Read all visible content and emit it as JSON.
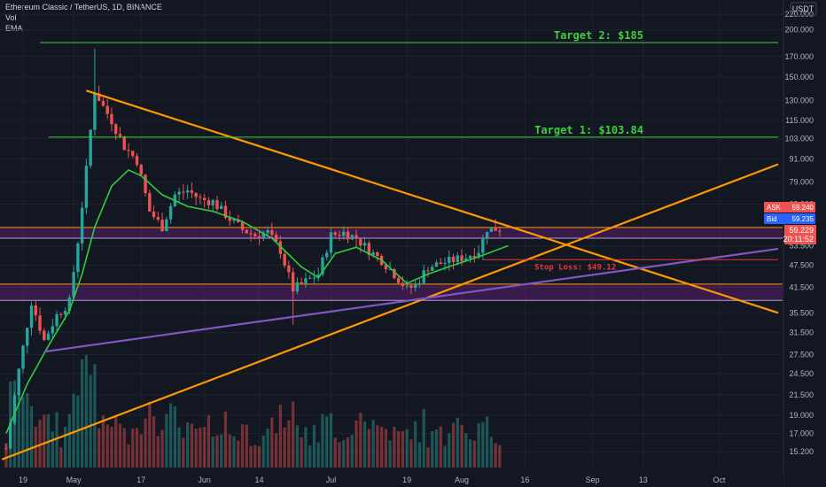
{
  "legend": {
    "title": "Ethereum Classic / TetherUS, 1D, BINANCE",
    "vol": "Vol",
    "ema": "EMA"
  },
  "currency": "USDT",
  "quote": {
    "ask_label": "ASK",
    "ask": "59.240",
    "bid_label": "Bid",
    "bid": "59.235",
    "last": "59.229",
    "countdown": "20:11:52"
  },
  "colors": {
    "background": "#131722",
    "up": "#26a69a",
    "down": "#ef5350",
    "ema": "#2ecc40",
    "trendline": "#ff9800",
    "support": "#7e57c2",
    "target": "#3bd23b",
    "stop": "#e53935"
  },
  "chart_data": {
    "type": "candlestick",
    "title": "Ethereum Classic / TetherUS, 1D, BINANCE",
    "y_scale": "log",
    "ylim": [
      13.8,
      240
    ],
    "y_ticks": [
      "15.200",
      "17.000",
      "19.000",
      "21.500",
      "24.500",
      "27.500",
      "31.500",
      "35.500",
      "41.500",
      "47.500",
      "53.500",
      "59.229",
      "69.000",
      "79.000",
      "91.000",
      "103.000",
      "115.000",
      "130.000",
      "150.000",
      "170.000",
      "200.000",
      "220.000"
    ],
    "x_ticks": [
      {
        "label": "19",
        "date": "2021-04-19"
      },
      {
        "label": "May",
        "date": "2021-05-01"
      },
      {
        "label": "17",
        "date": "2021-05-17"
      },
      {
        "label": "Jun",
        "date": "2021-06-01"
      },
      {
        "label": "14",
        "date": "2021-06-14"
      },
      {
        "label": "Jul",
        "date": "2021-07-01"
      },
      {
        "label": "19",
        "date": "2021-07-19"
      },
      {
        "label": "Aug",
        "date": "2021-08-01"
      },
      {
        "label": "16",
        "date": "2021-08-16"
      },
      {
        "label": "Sep",
        "date": "2021-09-01"
      },
      {
        "label": "13",
        "date": "2021-09-13"
      },
      {
        "label": "Oct",
        "date": "2021-10-01"
      }
    ],
    "ohlc_waypoints": [
      {
        "date": "2021-04-15",
        "close": 15.5
      },
      {
        "date": "2021-04-18",
        "close": 25
      },
      {
        "date": "2021-04-21",
        "close": 38
      },
      {
        "date": "2021-04-24",
        "close": 30
      },
      {
        "date": "2021-04-27",
        "close": 35
      },
      {
        "date": "2021-04-30",
        "close": 38
      },
      {
        "date": "2021-05-02",
        "close": 55
      },
      {
        "date": "2021-05-04",
        "close": 85
      },
      {
        "date": "2021-05-06",
        "close": 138
      },
      {
        "date": "2021-05-08",
        "close": 125
      },
      {
        "date": "2021-05-10",
        "close": 115
      },
      {
        "date": "2021-05-13",
        "close": 98
      },
      {
        "date": "2021-05-16",
        "close": 90
      },
      {
        "date": "2021-05-19",
        "close": 66
      },
      {
        "date": "2021-05-22",
        "close": 60
      },
      {
        "date": "2021-05-25",
        "close": 73
      },
      {
        "date": "2021-05-28",
        "close": 75
      },
      {
        "date": "2021-05-31",
        "close": 71
      },
      {
        "date": "2021-06-03",
        "close": 70
      },
      {
        "date": "2021-06-07",
        "close": 63
      },
      {
        "date": "2021-06-10",
        "close": 59
      },
      {
        "date": "2021-06-13",
        "close": 57
      },
      {
        "date": "2021-06-16",
        "close": 58
      },
      {
        "date": "2021-06-19",
        "close": 52
      },
      {
        "date": "2021-06-22",
        "close": 41
      },
      {
        "date": "2021-06-25",
        "close": 43
      },
      {
        "date": "2021-06-28",
        "close": 45
      },
      {
        "date": "2021-07-01",
        "close": 57
      },
      {
        "date": "2021-07-04",
        "close": 58
      },
      {
        "date": "2021-07-07",
        "close": 56
      },
      {
        "date": "2021-07-10",
        "close": 52
      },
      {
        "date": "2021-07-13",
        "close": 49
      },
      {
        "date": "2021-07-16",
        "close": 45
      },
      {
        "date": "2021-07-19",
        "close": 41
      },
      {
        "date": "2021-07-21",
        "close": 42
      },
      {
        "date": "2021-07-24",
        "close": 47
      },
      {
        "date": "2021-07-27",
        "close": 48
      },
      {
        "date": "2021-07-30",
        "close": 49
      },
      {
        "date": "2021-08-02",
        "close": 50
      },
      {
        "date": "2021-08-05",
        "close": 52
      },
      {
        "date": "2021-08-07",
        "close": 59.5
      },
      {
        "date": "2021-08-10",
        "close": 59.229
      }
    ],
    "ema_waypoints": [
      {
        "date": "2021-04-15",
        "value": 17
      },
      {
        "date": "2021-04-20",
        "value": 23
      },
      {
        "date": "2021-04-25",
        "value": 29
      },
      {
        "date": "2021-04-30",
        "value": 36
      },
      {
        "date": "2021-05-03",
        "value": 45
      },
      {
        "date": "2021-05-06",
        "value": 60
      },
      {
        "date": "2021-05-10",
        "value": 77
      },
      {
        "date": "2021-05-14",
        "value": 85
      },
      {
        "date": "2021-05-17",
        "value": 82
      },
      {
        "date": "2021-05-22",
        "value": 73
      },
      {
        "date": "2021-05-28",
        "value": 68
      },
      {
        "date": "2021-06-03",
        "value": 66
      },
      {
        "date": "2021-06-10",
        "value": 62
      },
      {
        "date": "2021-06-17",
        "value": 56
      },
      {
        "date": "2021-06-24",
        "value": 47
      },
      {
        "date": "2021-06-28",
        "value": 44
      },
      {
        "date": "2021-07-02",
        "value": 51
      },
      {
        "date": "2021-07-07",
        "value": 53
      },
      {
        "date": "2021-07-13",
        "value": 49
      },
      {
        "date": "2021-07-19",
        "value": 42.5
      },
      {
        "date": "2021-07-24",
        "value": 45
      },
      {
        "date": "2021-07-30",
        "value": 47.5
      },
      {
        "date": "2021-08-05",
        "value": 50
      },
      {
        "date": "2021-08-12",
        "value": 53.5
      }
    ],
    "horizontal_levels": [
      {
        "label": "Target 2: $185",
        "value": 185,
        "from": "2021-04-23",
        "to": "2021-10-15"
      },
      {
        "label": "Target 1: $103.84",
        "value": 103.84,
        "from": "2021-04-25",
        "to": "2021-10-15"
      },
      {
        "label": "Stop Loss: $49.12",
        "value": 49.12,
        "from": "2021-08-06",
        "to": "2021-10-15"
      }
    ],
    "zones": [
      {
        "from_value": 56,
        "to_value": 59.8,
        "color": "#9c27b0"
      },
      {
        "from_value": 38.3,
        "to_value": 42.3,
        "color": "#9c27b0"
      }
    ],
    "trendlines": [
      {
        "color": "#ff9800",
        "from": {
          "date": "2021-05-04",
          "value": 138
        },
        "to": {
          "date": "2021-10-15",
          "value": 35.5
        }
      },
      {
        "color": "#ff9800",
        "from": {
          "date": "2021-04-14",
          "value": 14.5
        },
        "to": {
          "date": "2021-10-15",
          "value": 88
        }
      },
      {
        "color": "#7e57c2",
        "from": {
          "date": "2021-04-24",
          "value": 28
        },
        "to": {
          "date": "2021-10-15",
          "value": 52.5
        }
      }
    ]
  }
}
